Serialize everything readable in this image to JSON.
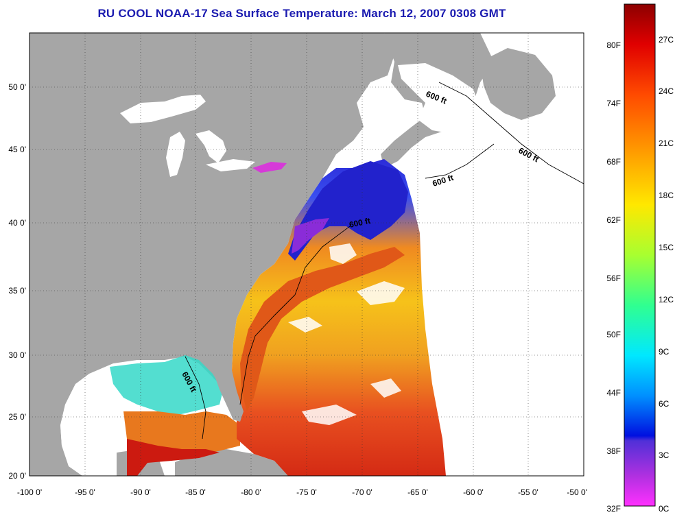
{
  "title": "RU COOL  NOAA-17  Sea Surface Temperature:  March 12, 2007 0308 GMT",
  "axes": {
    "x_labels": [
      "-100 0'",
      "-95 0'",
      "-90 0'",
      "-85 0'",
      "-80 0'",
      "-75 0'",
      "-70 0'",
      "-65 0'",
      "-60 0'",
      "-55 0'",
      "-50 0'"
    ],
    "y_labels": [
      "50 0'",
      "45 0'",
      "40 0'",
      "35 0'",
      "30 0'",
      "25 0'",
      "20 0'"
    ]
  },
  "contour_labels": [
    "600 ft",
    "600 ft",
    "600 ft",
    "600 ft",
    "600 ft"
  ],
  "colorbar": {
    "fahrenheit": [
      "80F",
      "74F",
      "68F",
      "62F",
      "56F",
      "50F",
      "44F",
      "38F",
      "32F"
    ],
    "celsius": [
      "27C",
      "24C",
      "21C",
      "18C",
      "15C",
      "12C",
      "9C",
      "6C",
      "3C",
      "0C"
    ]
  },
  "colors": {
    "land": "#a6a6a6",
    "no_data": "#ffffff",
    "title": "#1b1bb0"
  }
}
